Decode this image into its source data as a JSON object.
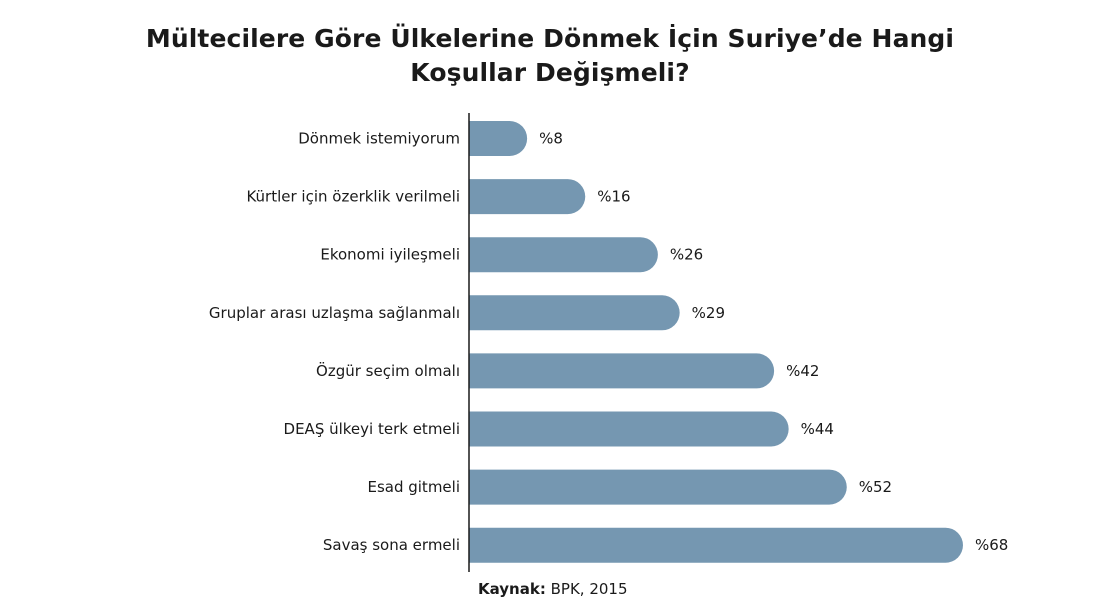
{
  "title_lines": [
    "Mültecilere Göre Ülkelerine Dönmek İçin Suriye’de Hangi",
    "Koşullar Değişmeli?"
  ],
  "source": {
    "prefix": "Kaynak:",
    "text": " BPK, 2015"
  },
  "colors": {
    "bar": "#7597b1",
    "axis": "#1a1a1a",
    "text": "#1a1a1a"
  },
  "chart_data": {
    "type": "bar",
    "orientation": "horizontal",
    "categories": [
      "Dönmek istemiyorum",
      "Kürtler için özerklik verilmeli",
      "Ekonomi iyileşmeli",
      "Gruplar arası uzlaşma sağlanmalı",
      "Özgür seçim olmalı",
      "DEAŞ ülkeyi terk etmeli",
      "Esad gitmeli",
      "Savaş sona ermeli"
    ],
    "values": [
      8,
      16,
      26,
      29,
      42,
      44,
      52,
      68
    ],
    "value_labels": [
      "%8",
      "%16",
      "%26",
      "%29",
      "%42",
      "%44",
      "%52",
      "%68"
    ],
    "title": "Mültecilere Göre Ülkelerine Dönmek İçin Suriye’de Hangi Koşullar Değişmeli?",
    "xlabel": "",
    "ylabel": "",
    "xlim": [
      0,
      68
    ],
    "grid": false,
    "legend": "none"
  }
}
